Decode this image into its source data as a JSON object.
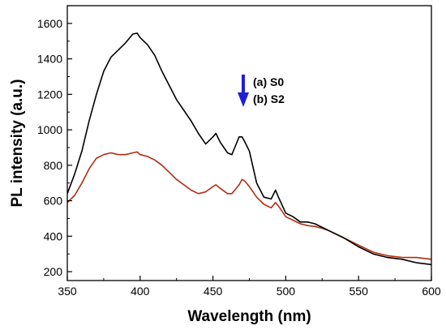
{
  "chart_data": {
    "type": "line",
    "xlabel": "Wavelength (nm)",
    "ylabel": "PL intensity (a.u.)",
    "xlim": [
      350,
      600
    ],
    "ylim": [
      150,
      1700
    ],
    "x_ticks": [
      350,
      400,
      450,
      500,
      550,
      600
    ],
    "y_ticks": [
      200,
      400,
      600,
      800,
      1000,
      1200,
      1400,
      1600
    ],
    "grid": false,
    "legend_position": "top-right",
    "legend_arrow_color": "#1f1fd6",
    "series": [
      {
        "name": "(a) S0",
        "color": "#000000",
        "x": [
          350,
          355,
          360,
          365,
          370,
          375,
          380,
          385,
          390,
          395,
          398,
          400,
          405,
          410,
          415,
          420,
          425,
          430,
          435,
          440,
          445,
          450,
          452,
          455,
          460,
          463,
          465,
          468,
          470,
          472,
          475,
          480,
          485,
          490,
          493,
          495,
          500,
          505,
          510,
          515,
          520,
          525,
          530,
          540,
          550,
          560,
          570,
          580,
          590,
          600
        ],
        "y": [
          640,
          750,
          880,
          1050,
          1200,
          1330,
          1410,
          1450,
          1490,
          1540,
          1545,
          1520,
          1480,
          1420,
          1330,
          1250,
          1170,
          1110,
          1050,
          980,
          920,
          960,
          980,
          930,
          870,
          860,
          900,
          960,
          960,
          930,
          880,
          700,
          620,
          610,
          660,
          620,
          530,
          510,
          480,
          480,
          470,
          450,
          430,
          390,
          340,
          300,
          280,
          270,
          250,
          240
        ]
      },
      {
        "name": "(b) S2",
        "color": "#b32c10",
        "x": [
          350,
          355,
          360,
          365,
          370,
          375,
          380,
          385,
          390,
          395,
          398,
          400,
          405,
          410,
          415,
          420,
          425,
          430,
          435,
          440,
          445,
          450,
          452,
          455,
          460,
          463,
          465,
          468,
          470,
          472,
          475,
          480,
          485,
          490,
          493,
          495,
          500,
          505,
          510,
          515,
          520,
          525,
          530,
          540,
          550,
          560,
          570,
          580,
          590,
          600
        ],
        "y": [
          590,
          630,
          700,
          780,
          840,
          860,
          870,
          860,
          860,
          870,
          875,
          860,
          850,
          830,
          800,
          760,
          720,
          690,
          660,
          640,
          650,
          680,
          690,
          670,
          640,
          640,
          660,
          690,
          720,
          710,
          680,
          620,
          580,
          560,
          590,
          570,
          510,
          490,
          470,
          460,
          455,
          445,
          430,
          390,
          350,
          310,
          290,
          280,
          280,
          270
        ]
      }
    ]
  }
}
